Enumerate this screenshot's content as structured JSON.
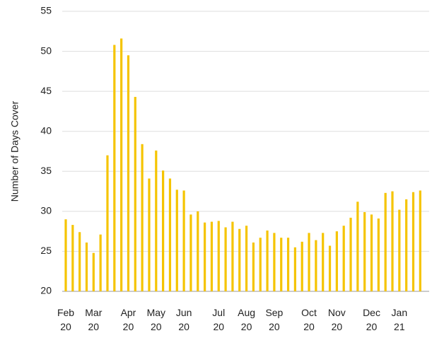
{
  "chart_data": {
    "type": "bar",
    "ylabel": "Number of Days Cover",
    "categories": [
      "Feb 20",
      null,
      null,
      null,
      "Mar 20",
      null,
      null,
      null,
      null,
      "Apr 20",
      null,
      null,
      null,
      "May 20",
      null,
      null,
      null,
      "Jun 20",
      null,
      null,
      null,
      null,
      "Jul 20",
      null,
      null,
      null,
      "Aug 20",
      null,
      null,
      null,
      "Sep 20",
      null,
      null,
      null,
      null,
      "Oct 20",
      null,
      null,
      null,
      "Nov 20",
      null,
      null,
      null,
      null,
      "Dec 20",
      null,
      null,
      null,
      "Jan 21",
      null,
      null,
      null
    ],
    "values": [
      29.0,
      28.3,
      27.4,
      26.1,
      24.8,
      27.1,
      37.0,
      50.8,
      51.6,
      49.5,
      44.3,
      38.4,
      34.1,
      37.6,
      35.1,
      34.1,
      32.7,
      32.6,
      29.6,
      30.0,
      28.6,
      28.7,
      28.8,
      28.0,
      28.7,
      27.8,
      28.2,
      26.1,
      26.7,
      27.6,
      27.3,
      26.7,
      26.7,
      25.5,
      26.2,
      27.3,
      26.4,
      27.3,
      25.7,
      27.5,
      28.2,
      29.2,
      31.2,
      29.9,
      29.6,
      29.1,
      32.3,
      32.5,
      30.2,
      31.5,
      32.4,
      32.6
    ],
    "color": "#f5c400",
    "ylim": [
      20,
      55
    ],
    "yticks": [
      20,
      25,
      30,
      35,
      40,
      45,
      50,
      55
    ],
    "grid": true
  }
}
